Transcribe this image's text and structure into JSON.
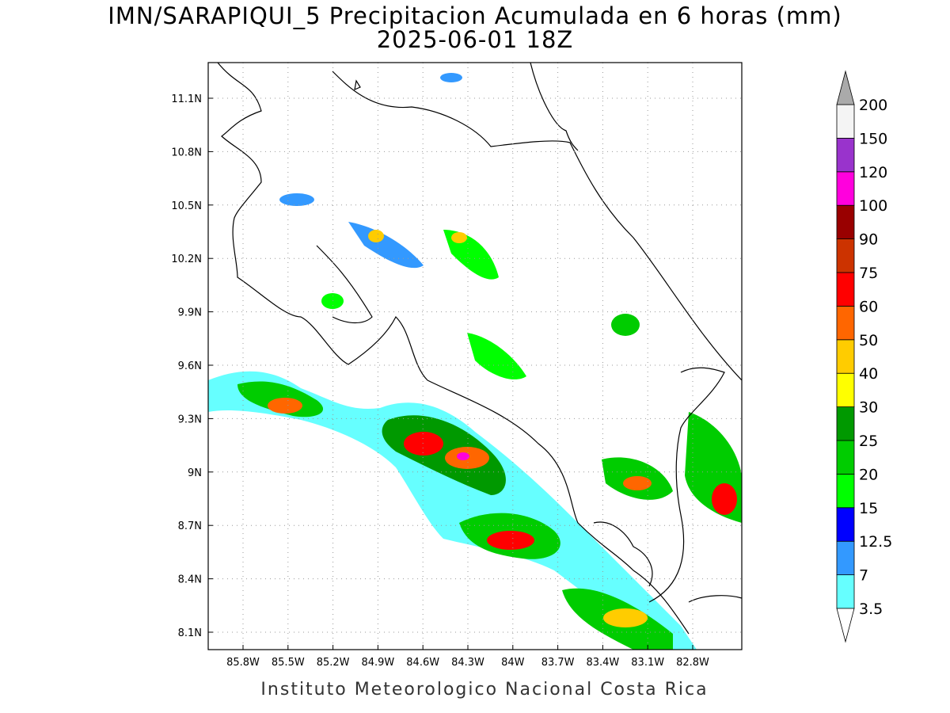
{
  "map": {
    "title": "IMN/SARAPIQUI_5 Precipitacion Acumulada en 6 horas (mm)",
    "subtitle": "2025-06-01 18Z",
    "lat_labels": [
      "11.1N",
      "10.8N",
      "10.5N",
      "10.2N",
      "9.9N",
      "9.6N",
      "9.3N",
      "9N",
      "8.7N",
      "8.4N",
      "8.1N"
    ],
    "lon_labels": [
      "85.8W",
      "85.5W",
      "85.2W",
      "84.9W",
      "84.6W",
      "84.3W",
      "84W",
      "83.7W",
      "83.4W",
      "83.1W",
      "82.8W"
    ],
    "colorbar": {
      "levels": [
        3.5,
        7,
        12.5,
        15,
        20,
        25,
        30,
        40,
        50,
        60,
        75,
        90,
        100,
        120,
        150,
        200
      ],
      "colors": [
        "#66ffff",
        "#3399ff",
        "#0000ff",
        "#00ff00",
        "#00cc00",
        "#009900",
        "#ffff00",
        "#ffcc00",
        "#ff6600",
        "#ff0000",
        "#cc3300",
        "#990000",
        "#ff00dd",
        "#9933cc",
        "#f4f4f4"
      ],
      "under_color": "#ffffff",
      "over_color": "#aaaaaa"
    },
    "footer": "Instituto Meteorologico Nacional Costa Rica"
  }
}
